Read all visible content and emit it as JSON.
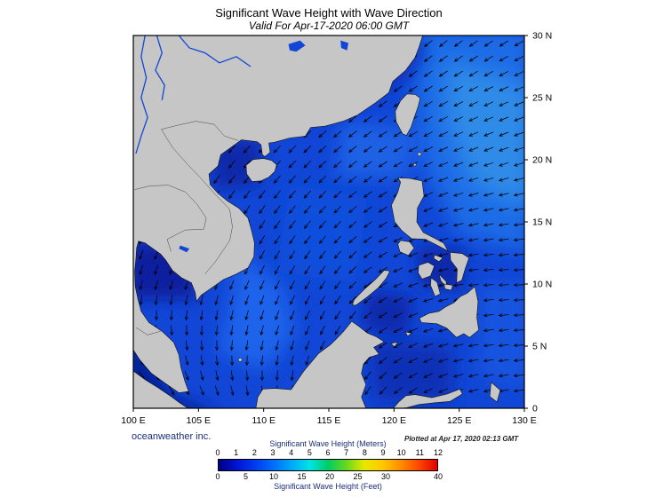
{
  "header": {
    "title": "Significant Wave Height with Wave Direction",
    "subtitle": "Valid For Apr-17-2020 06:00 GMT"
  },
  "footer": {
    "credit": "oceanweather inc.",
    "plotted": "Plotted at Apr 17, 2020 02:13 GMT"
  },
  "legend": {
    "meters_label": "Significant Wave Height (Meters)",
    "feet_label": "Significant Wave Height (Feet)",
    "meters_ticks": [
      0,
      1,
      2,
      3,
      4,
      5,
      6,
      7,
      8,
      9,
      10,
      11,
      12
    ],
    "feet_ticks": [
      0,
      5,
      10,
      15,
      20,
      25,
      30,
      40
    ],
    "colors": [
      "#000080",
      "#0014d2",
      "#003cf0",
      "#006ef8",
      "#00a8fa",
      "#00e4e4",
      "#00cc66",
      "#66d81e",
      "#e8e800",
      "#ffc800",
      "#ff8c00",
      "#ff4600",
      "#e00000"
    ]
  },
  "map": {
    "lat_labels": [
      "30 N",
      "25 N",
      "20 N",
      "15 N",
      "10 N",
      "5 N",
      "0"
    ],
    "lon_labels": [
      "100 E",
      "105 E",
      "110 E",
      "115 E",
      "120 E",
      "125 E",
      "130 E"
    ]
  },
  "colors": {
    "land": "#c6c6c6",
    "ocean_base": "#1146d6",
    "frame": "#000000",
    "arrow": "#000000",
    "label_navy": "#1c2e7c"
  },
  "chart_data": {
    "type": "heatmap",
    "title": "Significant Wave Height with Wave Direction",
    "subtitle": "Valid For Apr-17-2020 06:00 GMT",
    "region": "South China Sea / Western Pacific",
    "lon_range": [
      100,
      130
    ],
    "lat_range": [
      0,
      30
    ],
    "lon_ticks_deg": [
      100,
      105,
      110,
      115,
      120,
      125,
      130
    ],
    "lat_ticks_deg": [
      30,
      25,
      20,
      15,
      10,
      5,
      0
    ],
    "units_primary": "meters",
    "units_secondary": "feet",
    "scale_range_m": [
      0,
      12
    ],
    "scale_range_ft": [
      0,
      40
    ],
    "wave_height_m_regions": [
      {
        "name": "open-ocean-base",
        "hs_m": 1.3,
        "color": "#1146d6",
        "blur": 0,
        "poly": [
          [
            100,
            30
          ],
          [
            130,
            30
          ],
          [
            130,
            0
          ],
          [
            100,
            0
          ]
        ]
      },
      {
        "name": "pacific-northeast",
        "hs_m": 2.5,
        "color": "#1e6fe8",
        "blur": 12,
        "poly": [
          [
            121.5,
            30.5
          ],
          [
            130.5,
            30.5
          ],
          [
            130.5,
            12.5
          ],
          [
            125,
            14
          ],
          [
            122,
            20
          ],
          [
            121.5,
            26
          ]
        ]
      },
      {
        "name": "pacific-cyan-band",
        "hs_m": 3.0,
        "color": "#2e8ce8",
        "blur": 12,
        "poly": [
          [
            124,
            28
          ],
          [
            130.5,
            26
          ],
          [
            130.5,
            16
          ],
          [
            126,
            18
          ],
          [
            124,
            23
          ]
        ]
      },
      {
        "name": "luzon-strait",
        "hs_m": 2.2,
        "color": "#1a62e6",
        "blur": 10,
        "poly": [
          [
            116,
            23
          ],
          [
            122,
            22.5
          ],
          [
            121,
            18.5
          ],
          [
            115.5,
            18.5
          ]
        ]
      },
      {
        "name": "se-vietnam-jet",
        "hs_m": 2.2,
        "color": "#1b64ec",
        "blur": 10,
        "poly": [
          [
            108,
            12.5
          ],
          [
            111.5,
            10
          ],
          [
            112.5,
            6
          ],
          [
            110,
            3
          ],
          [
            106.5,
            4.5
          ],
          [
            107.5,
            9
          ]
        ]
      },
      {
        "name": "central-scs",
        "hs_m": 1.8,
        "color": "#1150dc",
        "blur": 12,
        "poly": [
          [
            112,
            18
          ],
          [
            118,
            17
          ],
          [
            117,
            10
          ],
          [
            111,
            11
          ]
        ]
      },
      {
        "name": "gulf-of-tonkin",
        "hs_m": 0.8,
        "color": "#0827a6",
        "blur": 8,
        "poly": [
          [
            105.9,
            21.6
          ],
          [
            109.8,
            21.6
          ],
          [
            109.8,
            18
          ],
          [
            106.2,
            17.6
          ]
        ]
      },
      {
        "name": "gulf-of-thailand",
        "hs_m": 0.6,
        "color": "#071f9c",
        "blur": 8,
        "poly": [
          [
            99.5,
            13.4
          ],
          [
            104.5,
            13.4
          ],
          [
            104.8,
            8.8
          ],
          [
            99.5,
            8.8
          ]
        ]
      },
      {
        "name": "malacca-java-sea",
        "hs_m": 0.5,
        "color": "#061c94",
        "blur": 8,
        "poly": [
          [
            99.5,
            6.5
          ],
          [
            103,
            1
          ],
          [
            107,
            -0.5
          ],
          [
            99.5,
            -0.5
          ]
        ]
      },
      {
        "name": "sulu-sea",
        "hs_m": 0.8,
        "color": "#0829aa",
        "blur": 8,
        "poly": [
          [
            118,
            9.5
          ],
          [
            121.5,
            9
          ],
          [
            121,
            5.8
          ],
          [
            117.5,
            6.5
          ]
        ]
      },
      {
        "name": "visayan-seas",
        "hs_m": 0.8,
        "color": "#0829aa",
        "blur": 7,
        "poly": [
          [
            121.8,
            13
          ],
          [
            125.5,
            12.8
          ],
          [
            125.3,
            9.5
          ],
          [
            122,
            9.8
          ]
        ]
      },
      {
        "name": "china-coastal-band",
        "hs_m": 1.0,
        "color": "#0a2fb8",
        "blur": 9,
        "poly": [
          [
            112.5,
            22.5
          ],
          [
            117,
            24.5
          ],
          [
            121,
            26.5
          ],
          [
            122.5,
            29
          ],
          [
            121.5,
            30
          ],
          [
            118,
            26.5
          ],
          [
            113.5,
            23.5
          ]
        ]
      },
      {
        "name": "celebes-sea",
        "hs_m": 1.0,
        "color": "#0a2eb4",
        "blur": 9,
        "poly": [
          [
            118,
            5.5
          ],
          [
            124.5,
            5
          ],
          [
            124.5,
            0.5
          ],
          [
            118.5,
            0.5
          ]
        ]
      },
      {
        "name": "east-of-mindanao",
        "hs_m": 1.8,
        "color": "#1554e0",
        "blur": 10,
        "poly": [
          [
            126.5,
            10
          ],
          [
            130.5,
            10
          ],
          [
            130.5,
            1.5
          ],
          [
            126.5,
            2.5
          ]
        ]
      }
    ],
    "wave_direction_toward_deg": {
      "lons": [
        100,
        105,
        110,
        115,
        120,
        125,
        130
      ],
      "lats": [
        30,
        25,
        20,
        15,
        10,
        5,
        0
      ],
      "grid": [
        [
          230,
          230,
          228,
          226,
          228,
          232,
          238
        ],
        [
          225,
          226,
          228,
          230,
          235,
          242,
          248
        ],
        [
          215,
          218,
          222,
          228,
          238,
          248,
          252
        ],
        [
          205,
          208,
          214,
          222,
          240,
          255,
          262
        ],
        [
          195,
          198,
          204,
          214,
          245,
          262,
          268
        ],
        [
          160,
          175,
          192,
          205,
          240,
          258,
          266
        ],
        [
          130,
          150,
          168,
          185,
          225,
          250,
          262
        ]
      ]
    }
  }
}
